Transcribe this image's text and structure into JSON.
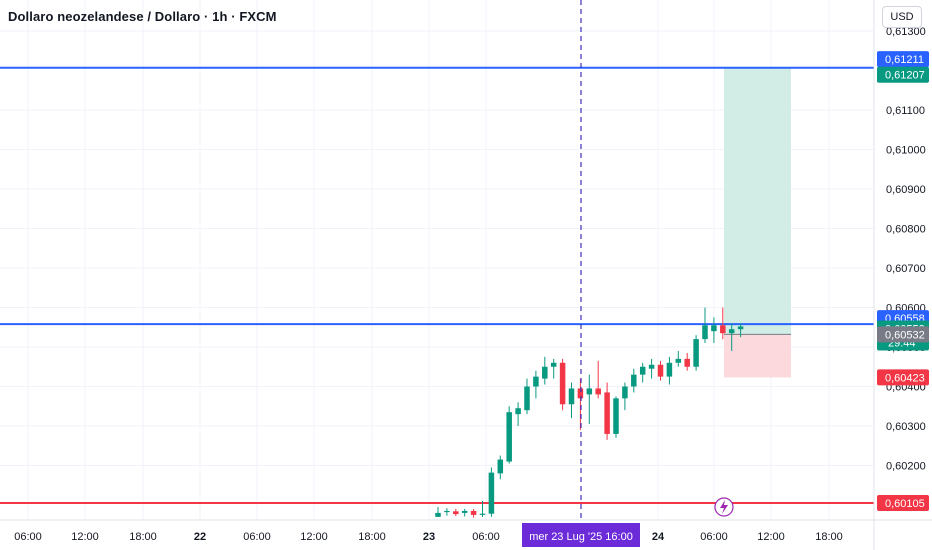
{
  "header": {
    "title": "Dollaro neozelandese / Dollaro · 1h · FXCM",
    "currency_label": "USD"
  },
  "colors": {
    "up": "#089981",
    "down": "#f23645",
    "blue_line": "#2962ff",
    "red_line": "#f23645",
    "profit_zone": "#d1ede6",
    "loss_zone": "#fbd9dc",
    "crosshair_label": "#6c2bd9",
    "timer_bg": "#089981",
    "grey_badge": "#787b86"
  },
  "chart_data": {
    "type": "candlestick",
    "y_range": [
      0.6001,
      0.6133
    ],
    "y_ticks": [
      "0,61100",
      "0,61000",
      "0,60900",
      "0,60800",
      "0,60700",
      "0,60600",
      "0,60500",
      "0,60400",
      "0,60300",
      "0,60200",
      "0,61300"
    ],
    "y_tick_values": [
      0.611,
      0.61,
      0.609,
      0.608,
      0.607,
      0.606,
      0.605,
      0.604,
      0.603,
      0.602,
      0.613
    ],
    "x_ticks": [
      {
        "label": "06:00",
        "bold": false
      },
      {
        "label": "12:00",
        "bold": false
      },
      {
        "label": "18:00",
        "bold": false
      },
      {
        "label": "22",
        "bold": true
      },
      {
        "label": "06:00",
        "bold": false
      },
      {
        "label": "12:00",
        "bold": false
      },
      {
        "label": "18:00",
        "bold": false
      },
      {
        "label": "23",
        "bold": true
      },
      {
        "label": "06:00",
        "bold": false
      },
      {
        "label": "16:00",
        "bold": false
      },
      {
        "label": "24",
        "bold": true
      },
      {
        "label": "06:00",
        "bold": false
      },
      {
        "label": "12:00",
        "bold": false
      },
      {
        "label": "18:00",
        "bold": false
      }
    ],
    "crosshair_label": "mer 23 Lug '25   16:00",
    "horizontal_lines": [
      {
        "value": 0.61207,
        "color": "blue"
      },
      {
        "value": 0.60558,
        "color": "blue"
      },
      {
        "value": 0.60105,
        "color": "red"
      }
    ],
    "price_badges": [
      {
        "label": "0,61211",
        "value": 0.61211,
        "color": "blue"
      },
      {
        "label": "0,61207",
        "value": 0.61207,
        "color": "green"
      },
      {
        "label": "0,60558",
        "value": 0.60558,
        "color": "blue"
      },
      {
        "label": "0,60552",
        "value": 0.60552,
        "color": "green",
        "sub": "29:44"
      },
      {
        "label": "0,60532",
        "value": 0.60532,
        "color": "grey"
      },
      {
        "label": "0,60423",
        "value": 0.60423,
        "color": "red"
      },
      {
        "label": "0,60105",
        "value": 0.60105,
        "color": "red"
      }
    ],
    "position": {
      "entry": 0.60532,
      "target": 0.61207,
      "stop": 0.60423
    },
    "candles": [
      {
        "o": 0.6007,
        "h": 0.60095,
        "l": 0.6007,
        "c": 0.6008
      },
      {
        "o": 0.60082,
        "h": 0.60092,
        "l": 0.60073,
        "c": 0.60085
      },
      {
        "o": 0.60084,
        "h": 0.6009,
        "l": 0.60072,
        "c": 0.60077
      },
      {
        "o": 0.6008,
        "h": 0.6009,
        "l": 0.60071,
        "c": 0.60085
      },
      {
        "o": 0.60085,
        "h": 0.6009,
        "l": 0.60068,
        "c": 0.60075
      },
      {
        "o": 0.60075,
        "h": 0.6011,
        "l": 0.6007,
        "c": 0.60078
      },
      {
        "o": 0.60078,
        "h": 0.60195,
        "l": 0.6007,
        "c": 0.60182
      },
      {
        "o": 0.6018,
        "h": 0.60225,
        "l": 0.60165,
        "c": 0.60215
      },
      {
        "o": 0.6021,
        "h": 0.6035,
        "l": 0.60205,
        "c": 0.60335
      },
      {
        "o": 0.6033,
        "h": 0.6036,
        "l": 0.603,
        "c": 0.60345
      },
      {
        "o": 0.6034,
        "h": 0.6042,
        "l": 0.6033,
        "c": 0.604
      },
      {
        "o": 0.604,
        "h": 0.6044,
        "l": 0.6037,
        "c": 0.60425
      },
      {
        "o": 0.6042,
        "h": 0.60475,
        "l": 0.60405,
        "c": 0.6045
      },
      {
        "o": 0.6045,
        "h": 0.6047,
        "l": 0.6042,
        "c": 0.6046
      },
      {
        "o": 0.6046,
        "h": 0.6047,
        "l": 0.6034,
        "c": 0.60355
      },
      {
        "o": 0.60355,
        "h": 0.6041,
        "l": 0.6032,
        "c": 0.60395
      },
      {
        "o": 0.60395,
        "h": 0.6042,
        "l": 0.6029,
        "c": 0.6037
      },
      {
        "o": 0.6038,
        "h": 0.6043,
        "l": 0.60305,
        "c": 0.60395
      },
      {
        "o": 0.60395,
        "h": 0.60465,
        "l": 0.6037,
        "c": 0.6038
      },
      {
        "o": 0.60385,
        "h": 0.6041,
        "l": 0.60265,
        "c": 0.6028
      },
      {
        "o": 0.6028,
        "h": 0.60375,
        "l": 0.6027,
        "c": 0.6037
      },
      {
        "o": 0.6037,
        "h": 0.6041,
        "l": 0.6034,
        "c": 0.604
      },
      {
        "o": 0.604,
        "h": 0.60445,
        "l": 0.60385,
        "c": 0.6043
      },
      {
        "o": 0.6043,
        "h": 0.6046,
        "l": 0.6041,
        "c": 0.6045
      },
      {
        "o": 0.60445,
        "h": 0.6047,
        "l": 0.6042,
        "c": 0.60455
      },
      {
        "o": 0.60455,
        "h": 0.60465,
        "l": 0.60415,
        "c": 0.60425
      },
      {
        "o": 0.60425,
        "h": 0.60475,
        "l": 0.60405,
        "c": 0.6046
      },
      {
        "o": 0.6046,
        "h": 0.6049,
        "l": 0.6045,
        "c": 0.6047
      },
      {
        "o": 0.6047,
        "h": 0.60485,
        "l": 0.6044,
        "c": 0.6045
      },
      {
        "o": 0.6045,
        "h": 0.6053,
        "l": 0.6044,
        "c": 0.6052
      },
      {
        "o": 0.6052,
        "h": 0.606,
        "l": 0.6051,
        "c": 0.60555
      },
      {
        "o": 0.6054,
        "h": 0.60575,
        "l": 0.6051,
        "c": 0.60555
      },
      {
        "o": 0.60555,
        "h": 0.606,
        "l": 0.6052,
        "c": 0.60535
      },
      {
        "o": 0.60535,
        "h": 0.6056,
        "l": 0.6049,
        "c": 0.60545
      },
      {
        "o": 0.60545,
        "h": 0.6056,
        "l": 0.60525,
        "c": 0.60552
      }
    ]
  }
}
